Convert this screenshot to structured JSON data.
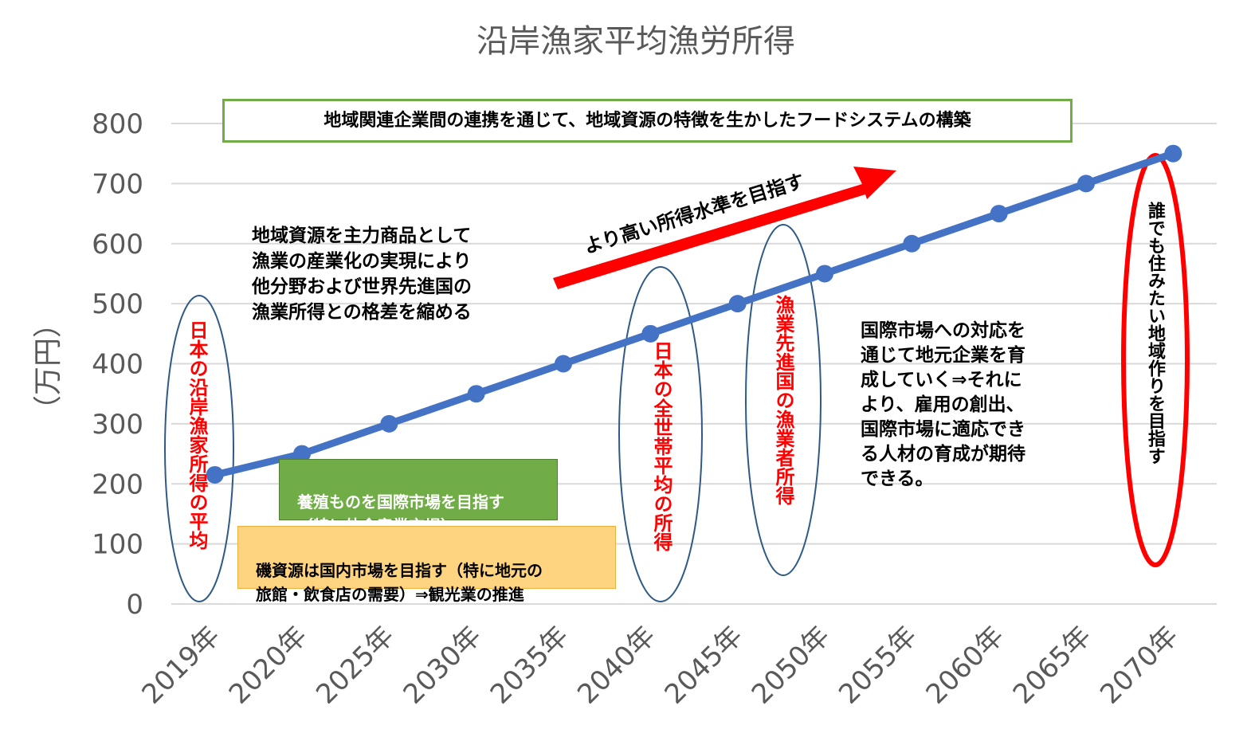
{
  "chart_data": {
    "type": "line",
    "title": "沿岸漁家平均漁労所得",
    "ylabel": "（万円）",
    "ylim": [
      0,
      800
    ],
    "yticks": [
      0,
      100,
      200,
      300,
      400,
      500,
      600,
      700,
      800
    ],
    "grid": true,
    "categories": [
      "2019年",
      "2020年",
      "2025年",
      "2030年",
      "2035年",
      "2040年",
      "2045年",
      "2050年",
      "2055年",
      "2060年",
      "2065年",
      "2070年"
    ],
    "series": [
      {
        "values": [
          215,
          250,
          300,
          350,
          400,
          450,
          500,
          550,
          600,
          650,
          700,
          750
        ],
        "color": "#4472c4"
      }
    ]
  },
  "annotations": {
    "top_box": "地域関連企業間の連携を通じて、地域資源の特徴を生かしたフードシステムの構築",
    "arrow_text": "より高い所得水準を目指す",
    "left_text": "地域資源を主力商品として\n漁業の産業化の実現により\n他分野および世界先進国の\n漁業所得との格差を縮める",
    "right_text": "国際市場への対応を\n通じて地元企業を育\n成していく⇒それに\nより、雇用の創出、\n国際市場に適応でき\nる人材の育成が期待\nできる。",
    "green_box": "養殖ものを国際市場を目指す\n（特に外食産業市場）",
    "yellow_box": "磯資源は国内市場を目指す（特に地元の\n旅館・飲食店の需要）⇒観光業の推進",
    "v_2019": "日本の沿岸漁家所得の平均",
    "v_2040": "日本の全世帯平均の所得",
    "v_advanced": "漁業先進国の漁業者所得",
    "v_2070": "誰でも住みたい地域作りを目指す"
  },
  "colors": {
    "line": "#4472c4",
    "grid": "#d9d9d9",
    "axis_text": "#595959",
    "ellipse_blue": "#2e5a87",
    "ellipse_red": "#ff0000",
    "arrow": "#ff0000",
    "top_box_border": "#70ad47",
    "green_box_fill": "#70ad47",
    "yellow_box_fill": "#ffd480"
  }
}
